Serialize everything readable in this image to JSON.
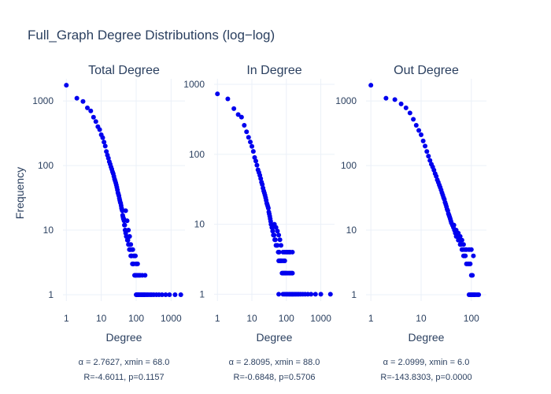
{
  "chart_data": {
    "type": "scatter",
    "title": "Full_Graph Degree Distributions (log−log)",
    "ylabel": "Frequency",
    "marker_color": "#0000ee",
    "grid": true,
    "panels": [
      {
        "subtitle": "Total Degree",
        "xlabel": "Degree",
        "x_scale": "log",
        "y_scale": "log",
        "xlim": [
          0.8,
          2500
        ],
        "ylim": [
          0.8,
          2200
        ],
        "x_ticks": [
          1,
          10,
          100,
          1000
        ],
        "x_tick_labels": [
          "1",
          "10",
          "100",
          "1000"
        ],
        "y_ticks": [
          1,
          10,
          100,
          1000
        ],
        "y_tick_labels": [
          "1",
          "10",
          "100",
          "1000"
        ],
        "annotation": [
          "α = 2.7627, xmin = 68.0",
          "R=-4.6011, p=0.1157"
        ],
        "points": [
          [
            1,
            1750
          ],
          [
            2,
            1100
          ],
          [
            3,
            980
          ],
          [
            4,
            780
          ],
          [
            5,
            700
          ],
          [
            6,
            560
          ],
          [
            7,
            480
          ],
          [
            8,
            400
          ],
          [
            9,
            360
          ],
          [
            10,
            300
          ],
          [
            11,
            270
          ],
          [
            12,
            230
          ],
          [
            13,
            200
          ],
          [
            14,
            165
          ],
          [
            15,
            145
          ],
          [
            16,
            130
          ],
          [
            17,
            115
          ],
          [
            18,
            105
          ],
          [
            19,
            95
          ],
          [
            20,
            88
          ],
          [
            21,
            80
          ],
          [
            22,
            75
          ],
          [
            23,
            68
          ],
          [
            24,
            62
          ],
          [
            25,
            58
          ],
          [
            26,
            54
          ],
          [
            27,
            50
          ],
          [
            28,
            46
          ],
          [
            29,
            42
          ],
          [
            30,
            38
          ],
          [
            31,
            36
          ],
          [
            32,
            34
          ],
          [
            33,
            31
          ],
          [
            34,
            29
          ],
          [
            35,
            27
          ],
          [
            36,
            26
          ],
          [
            37,
            24
          ],
          [
            38,
            22
          ],
          [
            39,
            21
          ],
          [
            40,
            20
          ],
          [
            41,
            17
          ],
          [
            42,
            16
          ],
          [
            43,
            15
          ],
          [
            44,
            15
          ],
          [
            45,
            14
          ],
          [
            46,
            12
          ],
          [
            47,
            12
          ],
          [
            48,
            10
          ],
          [
            49,
            10
          ],
          [
            50,
            9
          ],
          [
            52,
            8
          ],
          [
            54,
            8
          ],
          [
            56,
            7
          ],
          [
            58,
            7
          ],
          [
            60,
            6
          ],
          [
            62,
            6
          ],
          [
            64,
            5
          ],
          [
            66,
            5
          ],
          [
            68,
            5
          ],
          [
            70,
            4
          ],
          [
            72,
            4
          ],
          [
            75,
            4
          ],
          [
            78,
            3
          ],
          [
            80,
            3
          ],
          [
            85,
            3
          ],
          [
            90,
            2
          ],
          [
            95,
            2
          ],
          [
            100,
            2
          ],
          [
            110,
            2
          ],
          [
            120,
            2
          ],
          [
            130,
            2
          ],
          [
            150,
            2
          ],
          [
            180,
            2
          ],
          [
            50,
            20
          ],
          [
            55,
            14
          ],
          [
            60,
            10
          ],
          [
            65,
            8
          ],
          [
            70,
            6
          ],
          [
            75,
            5
          ],
          [
            80,
            5
          ],
          [
            85,
            4
          ],
          [
            90,
            4
          ],
          [
            95,
            4
          ],
          [
            100,
            3
          ],
          [
            110,
            3
          ],
          [
            100,
            1
          ],
          [
            105,
            1
          ],
          [
            110,
            1
          ],
          [
            115,
            1
          ],
          [
            120,
            1
          ],
          [
            130,
            1
          ],
          [
            140,
            1
          ],
          [
            150,
            1
          ],
          [
            160,
            1
          ],
          [
            170,
            1
          ],
          [
            180,
            1
          ],
          [
            200,
            1
          ],
          [
            220,
            1
          ],
          [
            250,
            1
          ],
          [
            280,
            1
          ],
          [
            320,
            1
          ],
          [
            380,
            1
          ],
          [
            450,
            1
          ],
          [
            550,
            1
          ],
          [
            700,
            1
          ],
          [
            900,
            1
          ],
          [
            1300,
            1
          ],
          [
            1900,
            1
          ]
        ]
      },
      {
        "subtitle": "In Degree",
        "xlabel": "Degree",
        "x_scale": "log",
        "y_scale": "log",
        "xlim": [
          0.8,
          2500
        ],
        "ylim": [
          0.8,
          1200
        ],
        "x_ticks": [
          1,
          10,
          100,
          1000
        ],
        "x_tick_labels": [
          "1",
          "10",
          "100",
          "1000"
        ],
        "y_ticks": [
          1,
          10,
          100,
          1000
        ],
        "y_tick_labels": [
          "1",
          "10",
          "100",
          "1000"
        ],
        "annotation": [
          "α = 2.8095, xmin = 88.0",
          "R=-0.6848, p=0.5706"
        ],
        "points": [
          [
            1,
            730
          ],
          [
            2,
            620
          ],
          [
            3,
            450
          ],
          [
            4,
            370
          ],
          [
            5,
            340
          ],
          [
            6,
            260
          ],
          [
            7,
            210
          ],
          [
            8,
            175
          ],
          [
            9,
            150
          ],
          [
            10,
            130
          ],
          [
            11,
            110
          ],
          [
            12,
            90
          ],
          [
            13,
            80
          ],
          [
            14,
            70
          ],
          [
            15,
            60
          ],
          [
            16,
            55
          ],
          [
            17,
            50
          ],
          [
            18,
            45
          ],
          [
            19,
            40
          ],
          [
            20,
            37
          ],
          [
            21,
            33
          ],
          [
            22,
            30
          ],
          [
            23,
            28
          ],
          [
            24,
            26
          ],
          [
            25,
            24
          ],
          [
            26,
            22
          ],
          [
            27,
            20
          ],
          [
            28,
            19
          ],
          [
            29,
            18
          ],
          [
            30,
            17
          ],
          [
            31,
            15
          ],
          [
            32,
            14
          ],
          [
            33,
            13
          ],
          [
            34,
            12
          ],
          [
            35,
            11
          ],
          [
            36,
            10
          ],
          [
            37,
            10
          ],
          [
            38,
            9
          ],
          [
            39,
            9
          ],
          [
            40,
            8
          ],
          [
            42,
            7
          ],
          [
            44,
            7
          ],
          [
            46,
            6
          ],
          [
            48,
            6
          ],
          [
            50,
            5
          ],
          [
            52,
            5
          ],
          [
            55,
            5
          ],
          [
            58,
            4
          ],
          [
            60,
            4
          ],
          [
            62,
            4
          ],
          [
            65,
            3
          ],
          [
            70,
            3
          ],
          [
            75,
            2
          ],
          [
            80,
            2
          ],
          [
            85,
            2
          ],
          [
            90,
            2
          ],
          [
            95,
            2
          ],
          [
            100,
            2
          ],
          [
            110,
            2
          ],
          [
            120,
            2
          ],
          [
            130,
            2
          ],
          [
            140,
            2
          ],
          [
            150,
            2
          ],
          [
            45,
            10
          ],
          [
            50,
            9
          ],
          [
            55,
            8
          ],
          [
            60,
            7
          ],
          [
            65,
            6
          ],
          [
            70,
            5
          ],
          [
            80,
            4
          ],
          [
            90,
            4
          ],
          [
            100,
            4
          ],
          [
            110,
            4
          ],
          [
            120,
            4
          ],
          [
            130,
            4
          ],
          [
            150,
            4
          ],
          [
            60,
            3
          ],
          [
            70,
            3
          ],
          [
            80,
            3
          ],
          [
            90,
            3
          ],
          [
            60,
            1
          ],
          [
            80,
            1
          ],
          [
            90,
            1
          ],
          [
            100,
            1
          ],
          [
            110,
            1
          ],
          [
            120,
            1
          ],
          [
            130,
            1
          ],
          [
            140,
            1
          ],
          [
            150,
            1
          ],
          [
            160,
            1
          ],
          [
            175,
            1
          ],
          [
            190,
            1
          ],
          [
            210,
            1
          ],
          [
            230,
            1
          ],
          [
            260,
            1
          ],
          [
            300,
            1
          ],
          [
            350,
            1
          ],
          [
            420,
            1
          ],
          [
            520,
            1
          ],
          [
            700,
            1
          ],
          [
            1000,
            1
          ],
          [
            1900,
            1
          ]
        ]
      },
      {
        "subtitle": "Out Degree",
        "xlabel": "Degree",
        "x_scale": "log",
        "y_scale": "log",
        "xlim": [
          0.8,
          200
        ],
        "ylim": [
          0.8,
          2200
        ],
        "x_ticks": [
          1,
          10,
          100
        ],
        "x_tick_labels": [
          "1",
          "10",
          "100"
        ],
        "y_ticks": [
          1,
          10,
          100,
          1000
        ],
        "y_tick_labels": [
          "1",
          "10",
          "100",
          "1000"
        ],
        "annotation": [
          "α = 2.0999, xmin = 6.0",
          "R=-143.8303, p=0.0000"
        ],
        "points": [
          [
            1,
            1750
          ],
          [
            2,
            1100
          ],
          [
            3,
            1050
          ],
          [
            4,
            900
          ],
          [
            5,
            780
          ],
          [
            6,
            650
          ],
          [
            7,
            520
          ],
          [
            8,
            420
          ],
          [
            9,
            350
          ],
          [
            10,
            300
          ],
          [
            11,
            240
          ],
          [
            12,
            200
          ],
          [
            13,
            165
          ],
          [
            14,
            140
          ],
          [
            15,
            120
          ],
          [
            16,
            105
          ],
          [
            17,
            95
          ],
          [
            18,
            85
          ],
          [
            19,
            75
          ],
          [
            20,
            68
          ],
          [
            21,
            60
          ],
          [
            22,
            55
          ],
          [
            23,
            50
          ],
          [
            24,
            46
          ],
          [
            25,
            42
          ],
          [
            26,
            38
          ],
          [
            27,
            35
          ],
          [
            28,
            32
          ],
          [
            29,
            30
          ],
          [
            30,
            27
          ],
          [
            31,
            25
          ],
          [
            32,
            23
          ],
          [
            33,
            21
          ],
          [
            34,
            20
          ],
          [
            35,
            18
          ],
          [
            36,
            17
          ],
          [
            37,
            16
          ],
          [
            38,
            15
          ],
          [
            39,
            14
          ],
          [
            40,
            13
          ],
          [
            42,
            12
          ],
          [
            44,
            11
          ],
          [
            46,
            10
          ],
          [
            48,
            9
          ],
          [
            50,
            8
          ],
          [
            52,
            8
          ],
          [
            55,
            7
          ],
          [
            58,
            7
          ],
          [
            60,
            6
          ],
          [
            62,
            6
          ],
          [
            65,
            5
          ],
          [
            68,
            5
          ],
          [
            70,
            4
          ],
          [
            73,
            4
          ],
          [
            76,
            4
          ],
          [
            80,
            3
          ],
          [
            85,
            3
          ],
          [
            90,
            3
          ],
          [
            95,
            3
          ],
          [
            100,
            2
          ],
          [
            105,
            2
          ],
          [
            45,
            12
          ],
          [
            50,
            10
          ],
          [
            55,
            9
          ],
          [
            60,
            8
          ],
          [
            65,
            7
          ],
          [
            70,
            6
          ],
          [
            75,
            5
          ],
          [
            80,
            5
          ],
          [
            90,
            5
          ],
          [
            100,
            5
          ],
          [
            110,
            4
          ],
          [
            90,
            1
          ],
          [
            95,
            1
          ],
          [
            100,
            1
          ],
          [
            105,
            1
          ],
          [
            110,
            1
          ],
          [
            115,
            1
          ],
          [
            120,
            1
          ],
          [
            130,
            1
          ],
          [
            140,
            1
          ]
        ]
      }
    ]
  }
}
